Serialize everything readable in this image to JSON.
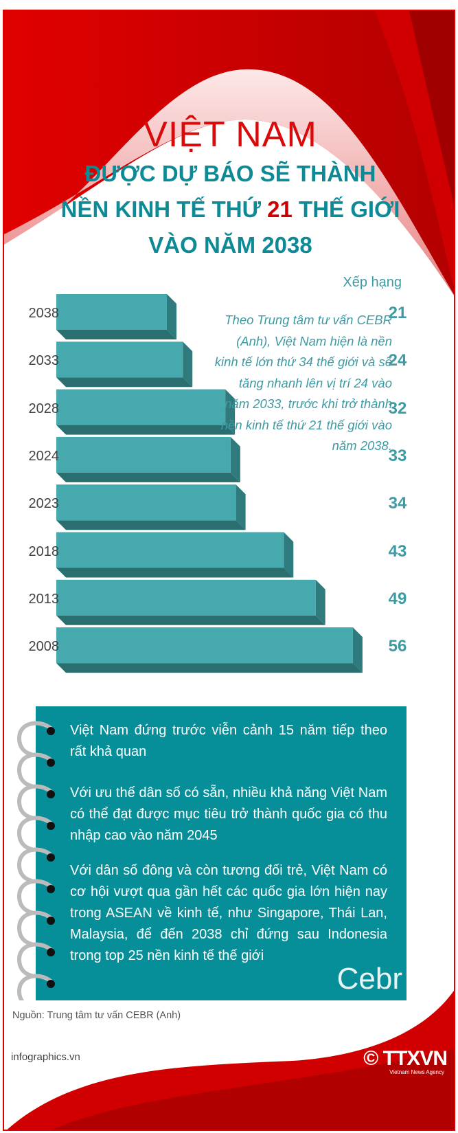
{
  "header": {
    "title": "VIỆT NAM",
    "sub_line1": "ĐƯỢC DỰ BÁO SẼ THÀNH",
    "sub_line2_a": "NỀN KINH TẾ THỨ ",
    "sub_line2_num": "21",
    "sub_line2_b": " THẾ GIỚI",
    "sub_line3": "VÀO NĂM 2038"
  },
  "chart_data": {
    "type": "bar",
    "orientation": "horizontal",
    "title": "Xếp hạng",
    "categories": [
      "2038",
      "2033",
      "2028",
      "2024",
      "2023",
      "2018",
      "2013",
      "2008"
    ],
    "values": [
      21,
      24,
      32,
      33,
      34,
      43,
      49,
      56
    ],
    "value_labels": [
      "21",
      "24",
      "32",
      "33",
      "34",
      "43",
      "49",
      "56"
    ],
    "ylabel": "Xếp hạng",
    "colors": {
      "front": "#45a9ad",
      "side": "#2f7a7c",
      "bottom": "#2a6e70"
    }
  },
  "note": "Theo Trung tâm tư vấn CEBR (Anh), Việt Nam hiện là nền kinh tế lớn thứ 34 thế giới và sẽ tăng nhanh lên vị trí 24 vào năm 2033, trước khi trở thành nền kinh tế thứ 21 thế giới vào năm 2038.",
  "points": [
    "Việt Nam đứng trước viễn cảnh 15 năm tiếp theo rất khả quan",
    "Với ưu thế dân số có sẵn, nhiều khả năng Việt Nam có thể đạt được mục tiêu trở thành quốc gia có thu nhập cao vào năm 2045",
    "Với dân số đông và còn tương đối trẻ, Việt Nam có cơ hội vượt qua gần hết các quốc gia lớn hiện nay trong ASEAN về kinh tế, như Singapore, Thái Lan, Malaysia, để đến 2038 chỉ đứng sau Indonesia trong top 25 nền kinh tế thế giới"
  ],
  "cebr_logo": "Cebr",
  "source": "Nguồn: Trung tâm tư vấn CEBR (Anh)",
  "site": "infographics.vn",
  "agency_logo": "© TTXVN",
  "agency_sub": "Vietnam News Agency"
}
